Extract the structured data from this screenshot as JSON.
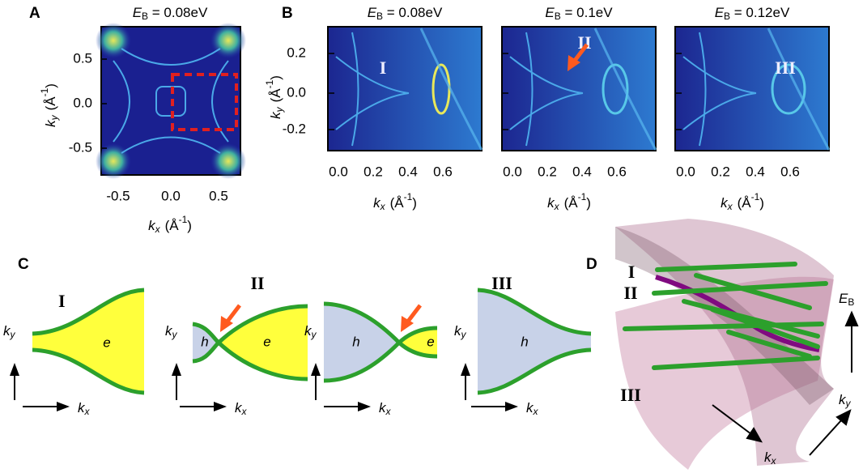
{
  "panel_a": {
    "label": "A",
    "title": {
      "symbol": "E",
      "subscript": "B",
      "text": " = 0.08eV"
    },
    "yticks": [
      "0.5",
      "0.0",
      "-0.5"
    ],
    "xticks": [
      "-0.5",
      "0.0",
      "0.5"
    ],
    "xlabel": {
      "symbol": "k",
      "subscript": "x",
      "unit": "(Å",
      "superscript": "-1",
      "close": ")"
    },
    "ylabel": {
      "symbol": "k",
      "subscript": "y",
      "unit": "(Å",
      "superscript": "-1",
      "close": ")"
    }
  },
  "panel_b": {
    "label": "B",
    "maps": [
      {
        "title": {
          "symbol": "E",
          "subscript": "B",
          "text": " = 0.08eV"
        },
        "marker": "I"
      },
      {
        "title": {
          "symbol": "E",
          "subscript": "B",
          "text": " = 0.1eV"
        },
        "marker": "II"
      },
      {
        "title": {
          "symbol": "E",
          "subscript": "B",
          "text": " = 0.12eV"
        },
        "marker": "III"
      }
    ],
    "yticks": [
      "0.2",
      "0.0",
      "-0.2"
    ],
    "xticks": [
      "0.0",
      "0.2",
      "0.4",
      "0.6"
    ],
    "xlabel": {
      "symbol": "k",
      "subscript": "x",
      "unit": "(Å",
      "superscript": "-1",
      "close": ")"
    },
    "ylabel": {
      "symbol": "k",
      "subscript": "y",
      "unit": "(Å",
      "superscript": "-1",
      "close": ")"
    }
  },
  "panel_c": {
    "label": "C",
    "diagrams": [
      {
        "marker": "I",
        "regions": [
          "e"
        ]
      },
      {
        "marker": "II",
        "regions": [
          "h",
          "e"
        ]
      },
      {
        "regions": [
          "h",
          "e"
        ]
      },
      {
        "marker": "III",
        "regions": [
          "h"
        ]
      }
    ],
    "ky": {
      "symbol": "k",
      "subscript": "y"
    },
    "kx": {
      "symbol": "k",
      "subscript": "x"
    }
  },
  "panel_d": {
    "label": "D",
    "markers": [
      "I",
      "II",
      "III"
    ],
    "eb": {
      "symbol": "E",
      "subscript": "B"
    },
    "ky": {
      "symbol": "k",
      "subscript": "y"
    },
    "kx": {
      "symbol": "k",
      "subscript": "x"
    }
  }
}
